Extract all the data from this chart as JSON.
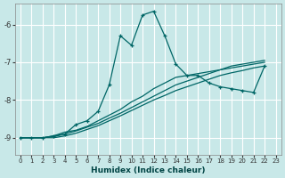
{
  "title": "",
  "xlabel": "Humidex (Indice chaleur)",
  "ylabel": "",
  "bg_color": "#c8e8e8",
  "grid_color": "#ffffff",
  "line_color": "#006666",
  "marker_color": "#006666",
  "xlim": [
    -0.5,
    23.5
  ],
  "ylim": [
    -9.45,
    -5.45
  ],
  "xticks": [
    0,
    1,
    2,
    3,
    4,
    5,
    6,
    7,
    8,
    9,
    10,
    11,
    12,
    13,
    14,
    15,
    16,
    17,
    18,
    19,
    20,
    21,
    22,
    23
  ],
  "yticks": [
    -9,
    -8,
    -7,
    -6
  ],
  "main_line_x": [
    0,
    1,
    2,
    3,
    4,
    5,
    6,
    7,
    8,
    9,
    10,
    11,
    12,
    13,
    14,
    15,
    16,
    17,
    18,
    19,
    20,
    21,
    22
  ],
  "main_line_y": [
    -9.0,
    -9.0,
    -9.0,
    -8.95,
    -8.9,
    -8.65,
    -8.55,
    -8.3,
    -7.6,
    -6.3,
    -6.55,
    -5.75,
    -5.65,
    -6.3,
    -7.05,
    -7.35,
    -7.35,
    -7.55,
    -7.65,
    -7.7,
    -7.75,
    -7.8,
    -7.1
  ],
  "line2_x": [
    0,
    1,
    2,
    3,
    4,
    5,
    6,
    7,
    8,
    9,
    10,
    11,
    12,
    13,
    14,
    15,
    16,
    17,
    18,
    19,
    20,
    21,
    22
  ],
  "line2_y": [
    -9.0,
    -9.0,
    -9.0,
    -8.95,
    -8.85,
    -8.8,
    -8.7,
    -8.55,
    -8.4,
    -8.25,
    -8.05,
    -7.9,
    -7.7,
    -7.55,
    -7.4,
    -7.35,
    -7.3,
    -7.25,
    -7.2,
    -7.15,
    -7.1,
    -7.05,
    -7.0
  ],
  "line3_x": [
    0,
    1,
    2,
    3,
    4,
    5,
    6,
    7,
    8,
    9,
    10,
    11,
    12,
    13,
    14,
    15,
    16,
    17,
    18,
    19,
    20,
    21,
    22
  ],
  "line3_y": [
    -9.0,
    -9.0,
    -9.0,
    -8.97,
    -8.9,
    -8.82,
    -8.72,
    -8.62,
    -8.48,
    -8.35,
    -8.2,
    -8.05,
    -7.9,
    -7.75,
    -7.6,
    -7.5,
    -7.4,
    -7.3,
    -7.2,
    -7.1,
    -7.05,
    -7.0,
    -6.95
  ],
  "line4_x": [
    0,
    1,
    2,
    3,
    4,
    5,
    6,
    7,
    8,
    9,
    10,
    11,
    12,
    13,
    14,
    15,
    16,
    17,
    18,
    19,
    20,
    21,
    22
  ],
  "line4_y": [
    -9.0,
    -9.0,
    -9.0,
    -9.0,
    -8.95,
    -8.88,
    -8.78,
    -8.68,
    -8.55,
    -8.42,
    -8.28,
    -8.14,
    -8.0,
    -7.88,
    -7.75,
    -7.65,
    -7.55,
    -7.45,
    -7.35,
    -7.28,
    -7.22,
    -7.15,
    -7.1
  ]
}
